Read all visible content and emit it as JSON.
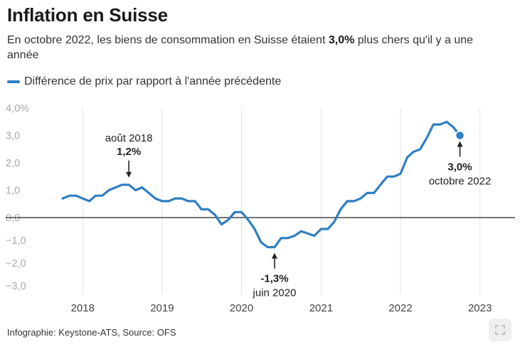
{
  "title": "Inflation en Suisse",
  "subtitle": {
    "before": "En octobre 2022, les biens de consommation en Suisse étaient ",
    "bold": "3,0%",
    "after": " plus chers qu'il y a une année"
  },
  "footer": "Infographie: Keystone-ATS, Source: OFS",
  "colors": {
    "line": "#2f7fc1",
    "grid": "#e4e4e4",
    "zero": "#222222",
    "axis_text": "#aaaaaa"
  },
  "icons": {
    "expand": "expand-icon"
  },
  "chart_data": {
    "type": "line",
    "title": "Inflation en Suisse",
    "xlabel": "",
    "ylabel": "",
    "ylim": [
      -3.0,
      4.0
    ],
    "yticks": [
      -3,
      -2,
      -1,
      0,
      1,
      2,
      3,
      4
    ],
    "ytick_labels": [
      "−3,0",
      "−2,0",
      "−1,0",
      "0,0",
      "1,0",
      "2,0",
      "3,0",
      "4,0%"
    ],
    "xlim": [
      "2017-07-01",
      "2023-07-01"
    ],
    "xticks": [
      "2018-01-01",
      "2019-01-01",
      "2020-01-01",
      "2021-01-01",
      "2022-01-01",
      "2023-01-01"
    ],
    "xtick_labels": [
      "2018",
      "2019",
      "2020",
      "2021",
      "2022",
      "2023"
    ],
    "grid": "vertical",
    "legend": "top-left",
    "series": [
      {
        "name": "Différence de prix par rapport à l'année précédente",
        "dates": [
          "2017-10",
          "2017-11",
          "2017-12",
          "2018-01",
          "2018-02",
          "2018-03",
          "2018-04",
          "2018-05",
          "2018-06",
          "2018-07",
          "2018-08",
          "2018-09",
          "2018-10",
          "2018-11",
          "2018-12",
          "2019-01",
          "2019-02",
          "2019-03",
          "2019-04",
          "2019-05",
          "2019-06",
          "2019-07",
          "2019-08",
          "2019-09",
          "2019-10",
          "2019-11",
          "2019-12",
          "2020-01",
          "2020-02",
          "2020-03",
          "2020-04",
          "2020-05",
          "2020-06",
          "2020-07",
          "2020-08",
          "2020-09",
          "2020-10",
          "2020-11",
          "2020-12",
          "2021-01",
          "2021-02",
          "2021-03",
          "2021-04",
          "2021-05",
          "2021-06",
          "2021-07",
          "2021-08",
          "2021-09",
          "2021-10",
          "2021-11",
          "2021-12",
          "2022-01",
          "2022-02",
          "2022-03",
          "2022-04",
          "2022-05",
          "2022-06",
          "2022-07",
          "2022-08",
          "2022-09",
          "2022-10"
        ],
        "values": [
          0.7,
          0.8,
          0.8,
          0.7,
          0.6,
          0.8,
          0.8,
          1.0,
          1.1,
          1.2,
          1.2,
          1.0,
          1.1,
          0.9,
          0.7,
          0.6,
          0.6,
          0.7,
          0.7,
          0.6,
          0.6,
          0.3,
          0.3,
          0.1,
          -0.3,
          -0.1,
          0.2,
          0.2,
          -0.1,
          -0.5,
          -1.1,
          -1.3,
          -1.3,
          -0.9,
          -0.9,
          -0.8,
          -0.6,
          -0.7,
          -0.8,
          -0.5,
          -0.5,
          -0.2,
          0.3,
          0.6,
          0.6,
          0.7,
          0.9,
          0.9,
          1.2,
          1.5,
          1.5,
          1.6,
          2.2,
          2.4,
          2.5,
          2.9,
          3.4,
          3.4,
          3.5,
          3.3,
          3.0
        ]
      }
    ],
    "annotations": [
      {
        "date": "2018-08",
        "value": 1.2,
        "value_label": "1,2%",
        "date_label": "août 2018",
        "position": "above"
      },
      {
        "date": "2020-06",
        "value": -1.3,
        "value_label": "-1,3%",
        "date_label": "juin 2020",
        "position": "below"
      },
      {
        "date": "2022-10",
        "value": 3.0,
        "value_label": "3,0%",
        "date_label": "octobre 2022",
        "position": "below"
      }
    ]
  }
}
